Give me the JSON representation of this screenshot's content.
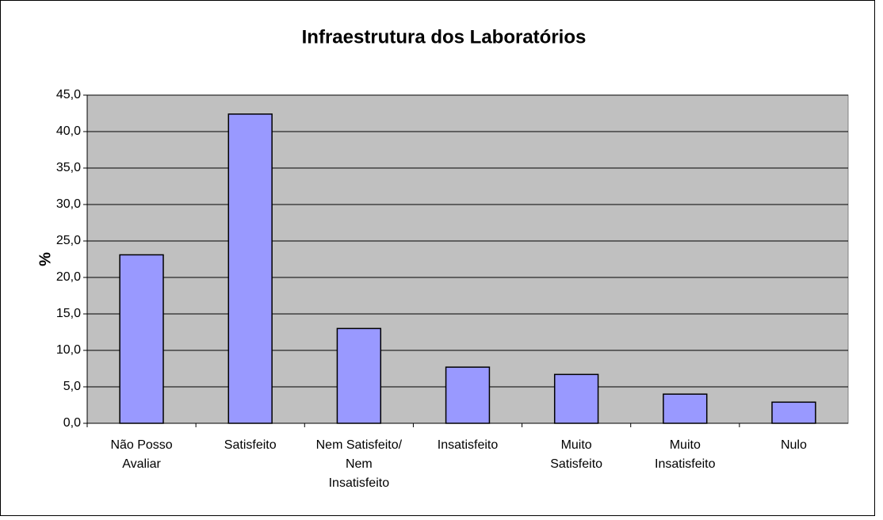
{
  "chart_data": {
    "type": "bar",
    "title": "Infraestrutura dos Laboratórios",
    "y_label": "%",
    "categories": [
      [
        "Não Posso",
        "Avaliar"
      ],
      [
        "Satisfeito"
      ],
      [
        "Nem Satisfeito/",
        "Nem",
        "Insatisfeito"
      ],
      [
        "Insatisfeito"
      ],
      [
        "Muito",
        "Satisfeito"
      ],
      [
        "Muito",
        "Insatisfeito"
      ],
      [
        "Nulo"
      ]
    ],
    "values": [
      23.1,
      42.4,
      13.0,
      7.7,
      6.7,
      4.0,
      2.9
    ],
    "color": "#9999ff",
    "ylim": [
      0,
      45
    ],
    "yticks": [
      {
        "value": 0,
        "label": "0,0"
      },
      {
        "value": 5,
        "label": "5,0"
      },
      {
        "value": 10,
        "label": "10,0"
      },
      {
        "value": 15,
        "label": "15,0"
      },
      {
        "value": 20,
        "label": "20,0"
      },
      {
        "value": 25,
        "label": "25,0"
      },
      {
        "value": 30,
        "label": "30,0"
      },
      {
        "value": 35,
        "label": "35,0"
      },
      {
        "value": 40,
        "label": "40,0"
      },
      {
        "value": 45,
        "label": "45,0"
      }
    ],
    "grid": true
  }
}
